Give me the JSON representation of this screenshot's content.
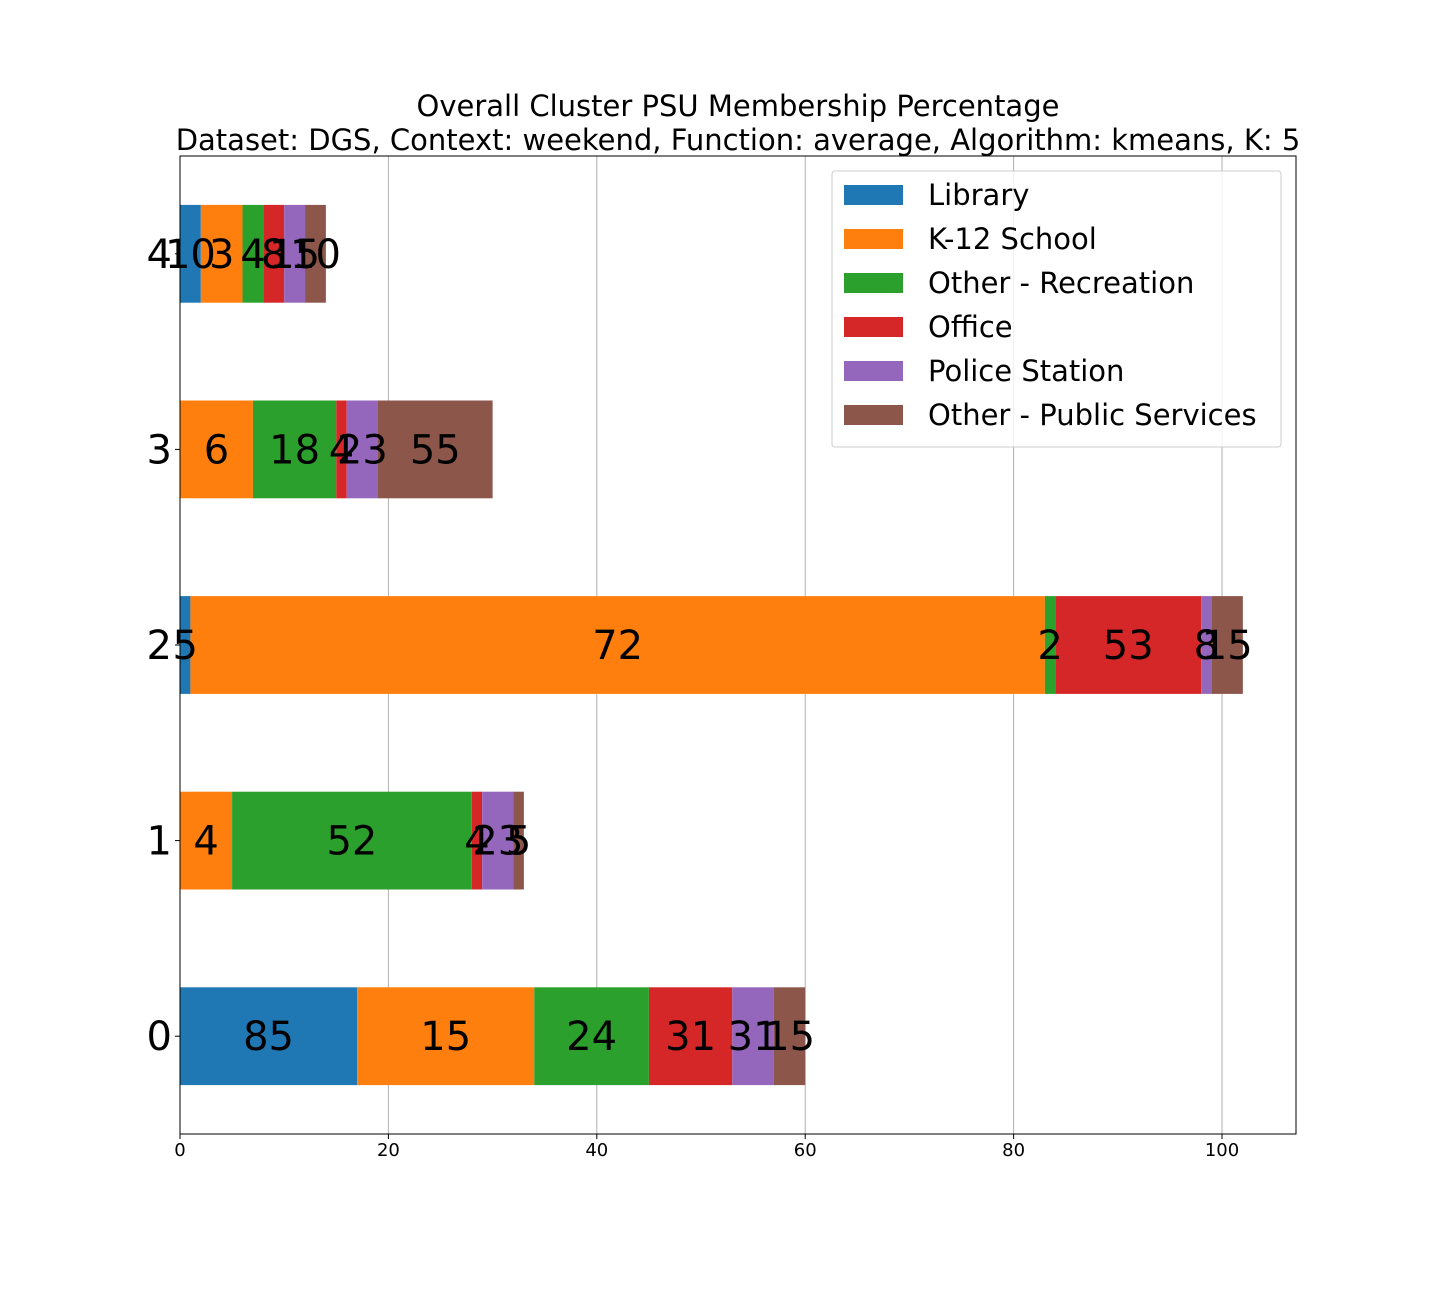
{
  "chart_data": {
    "type": "bar",
    "orientation": "horizontal",
    "stacked": true,
    "title": "Overall Cluster  PSU Membership Percentage",
    "subtitle": "Dataset: DGS, Context: weekend, Function: average, Algorithm: kmeans, K: 5",
    "xlabel": "",
    "ylabel": "",
    "xlim": [
      0,
      107.1
    ],
    "xticks": [
      0,
      20,
      40,
      60,
      80,
      100
    ],
    "grid": "x",
    "legend_position": "top-right",
    "categories": [
      "0",
      "1",
      "2",
      "3",
      "4"
    ],
    "series": [
      {
        "name": "Library",
        "color": "#1f77b4",
        "values": [
          17,
          0,
          1,
          0,
          2
        ],
        "labels": [
          "85",
          "",
          "5",
          "",
          "10"
        ]
      },
      {
        "name": "K-12 School",
        "color": "#ff7f0e",
        "values": [
          17,
          5,
          82,
          7,
          4
        ],
        "labels": [
          "15",
          "4",
          "72",
          "6",
          "3"
        ]
      },
      {
        "name": "Other - Recreation",
        "color": "#2ca02c",
        "values": [
          11,
          23,
          1,
          8,
          2
        ],
        "labels": [
          "24",
          "52",
          "2",
          "18",
          "4"
        ]
      },
      {
        "name": "Office",
        "color": "#d62728",
        "values": [
          8,
          1,
          14,
          1,
          2
        ],
        "labels": [
          "31",
          "4",
          "53",
          "4",
          "8"
        ]
      },
      {
        "name": "Police Station",
        "color": "#9467bd",
        "values": [
          4,
          3,
          1,
          3,
          2
        ],
        "labels": [
          "31",
          "23",
          "8",
          "23",
          "15"
        ]
      },
      {
        "name": "Other - Public Services",
        "color": "#8c564b",
        "values": [
          3,
          1,
          3,
          11,
          2
        ],
        "labels": [
          "15",
          "5",
          "15",
          "55",
          "10"
        ]
      }
    ]
  }
}
